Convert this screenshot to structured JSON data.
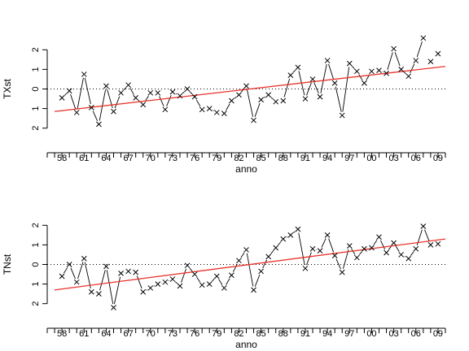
{
  "chart_data": [
    {
      "type": "line",
      "xlabel": "anno",
      "ylabel": "TXst",
      "xlim": [
        1956,
        2010
      ],
      "ylim": [
        -2.8,
        2.8
      ],
      "x_ticks": [
        58,
        61,
        64,
        67,
        70,
        73,
        76,
        79,
        82,
        85,
        88,
        91,
        94,
        97,
        0,
        3,
        6,
        9
      ],
      "x_tick_labels": [
        "58",
        "61",
        "64",
        "67",
        "70",
        "73",
        "76",
        "79",
        "82",
        "85",
        "88",
        "91",
        "94",
        "97",
        "00",
        "03",
        "06",
        "09"
      ],
      "y_ticks": [
        -2,
        -1,
        0,
        1,
        2
      ],
      "y_tick_labels": [
        "2",
        "1",
        "0",
        "1",
        "2"
      ],
      "marker": "x",
      "reference_line": {
        "y": 0,
        "style": "dotted"
      },
      "trend": {
        "color": "#e8332b",
        "x": [
          1957,
          2010
        ],
        "y": [
          -1.15,
          1.15
        ]
      },
      "x": [
        1958,
        1959,
        1960,
        1961,
        1962,
        1963,
        1964,
        1965,
        1966,
        1967,
        1968,
        1969,
        1970,
        1971,
        1972,
        1973,
        1974,
        1975,
        1976,
        1977,
        1978,
        1979,
        1980,
        1981,
        1982,
        1983,
        1984,
        1985,
        1986,
        1987,
        1988,
        1989,
        1990,
        1991,
        1992,
        1993,
        1994,
        1995,
        1996,
        1997,
        1998,
        1999,
        2000,
        2001,
        2002,
        2003,
        2004,
        2005,
        2006,
        2007,
        2008,
        2009
      ],
      "y": [
        -0.45,
        -0.1,
        -1.2,
        0.75,
        -0.95,
        -1.8,
        0.15,
        -1.15,
        -0.2,
        0.2,
        -0.45,
        -0.8,
        -0.2,
        -0.2,
        -1.05,
        -0.15,
        -0.35,
        0.0,
        -0.4,
        -1.05,
        -1.0,
        -1.2,
        -1.25,
        -0.6,
        -0.3,
        0.15,
        -1.6,
        -0.55,
        -0.3,
        -0.65,
        -0.6,
        0.7,
        1.1,
        -0.5,
        0.5,
        -0.4,
        1.45,
        0.3,
        -1.35,
        1.3,
        0.9,
        0.3,
        0.9,
        0.95,
        0.8,
        2.05,
        1.0,
        0.65,
        1.45,
        2.6,
        1.4,
        1.8
      ],
      "connected_from": 1958,
      "connected_to": 2007
    },
    {
      "type": "line",
      "xlabel": "anno",
      "ylabel": "TNst",
      "xlim": [
        1956,
        2010
      ],
      "ylim": [
        -2.8,
        2.8
      ],
      "x_ticks": [
        58,
        61,
        64,
        67,
        70,
        73,
        76,
        79,
        82,
        85,
        88,
        91,
        94,
        97,
        0,
        3,
        6,
        9
      ],
      "x_tick_labels": [
        "58",
        "61",
        "64",
        "67",
        "70",
        "73",
        "76",
        "79",
        "82",
        "85",
        "88",
        "91",
        "94",
        "97",
        "00",
        "03",
        "06",
        "09"
      ],
      "y_ticks": [
        -2,
        -1,
        0,
        1,
        2
      ],
      "y_tick_labels": [
        "2",
        "1",
        "0",
        "1",
        "2"
      ],
      "marker": "x",
      "reference_line": {
        "y": 0,
        "style": "dotted"
      },
      "trend": {
        "color": "#e8332b",
        "x": [
          1957,
          2010
        ],
        "y": [
          -1.3,
          1.3
        ]
      },
      "x": [
        1958,
        1959,
        1960,
        1961,
        1962,
        1963,
        1964,
        1965,
        1966,
        1967,
        1968,
        1969,
        1970,
        1971,
        1972,
        1973,
        1974,
        1975,
        1976,
        1977,
        1978,
        1979,
        1980,
        1981,
        1982,
        1983,
        1984,
        1985,
        1986,
        1987,
        1988,
        1989,
        1990,
        1991,
        1992,
        1993,
        1994,
        1995,
        1996,
        1997,
        1998,
        1999,
        2000,
        2001,
        2002,
        2003,
        2004,
        2005,
        2006,
        2007,
        2008,
        2009
      ],
      "y": [
        -0.6,
        0.0,
        -0.9,
        0.3,
        -1.4,
        -1.5,
        -0.1,
        -2.2,
        -0.45,
        -0.35,
        -0.4,
        -1.4,
        -1.2,
        -1.0,
        -0.9,
        -0.75,
        -1.1,
        -0.05,
        -0.5,
        -1.05,
        -1.0,
        -0.6,
        -1.2,
        -0.55,
        0.2,
        0.75,
        -1.3,
        -0.35,
        0.4,
        0.85,
        1.3,
        1.5,
        1.8,
        -0.2,
        0.8,
        0.7,
        1.5,
        0.45,
        -0.4,
        0.95,
        0.35,
        0.8,
        0.85,
        1.4,
        0.6,
        1.1,
        0.5,
        0.3,
        0.8,
        1.95,
        1.0,
        1.05
      ],
      "connected_from": 1958,
      "connected_to": 2008
    }
  ]
}
